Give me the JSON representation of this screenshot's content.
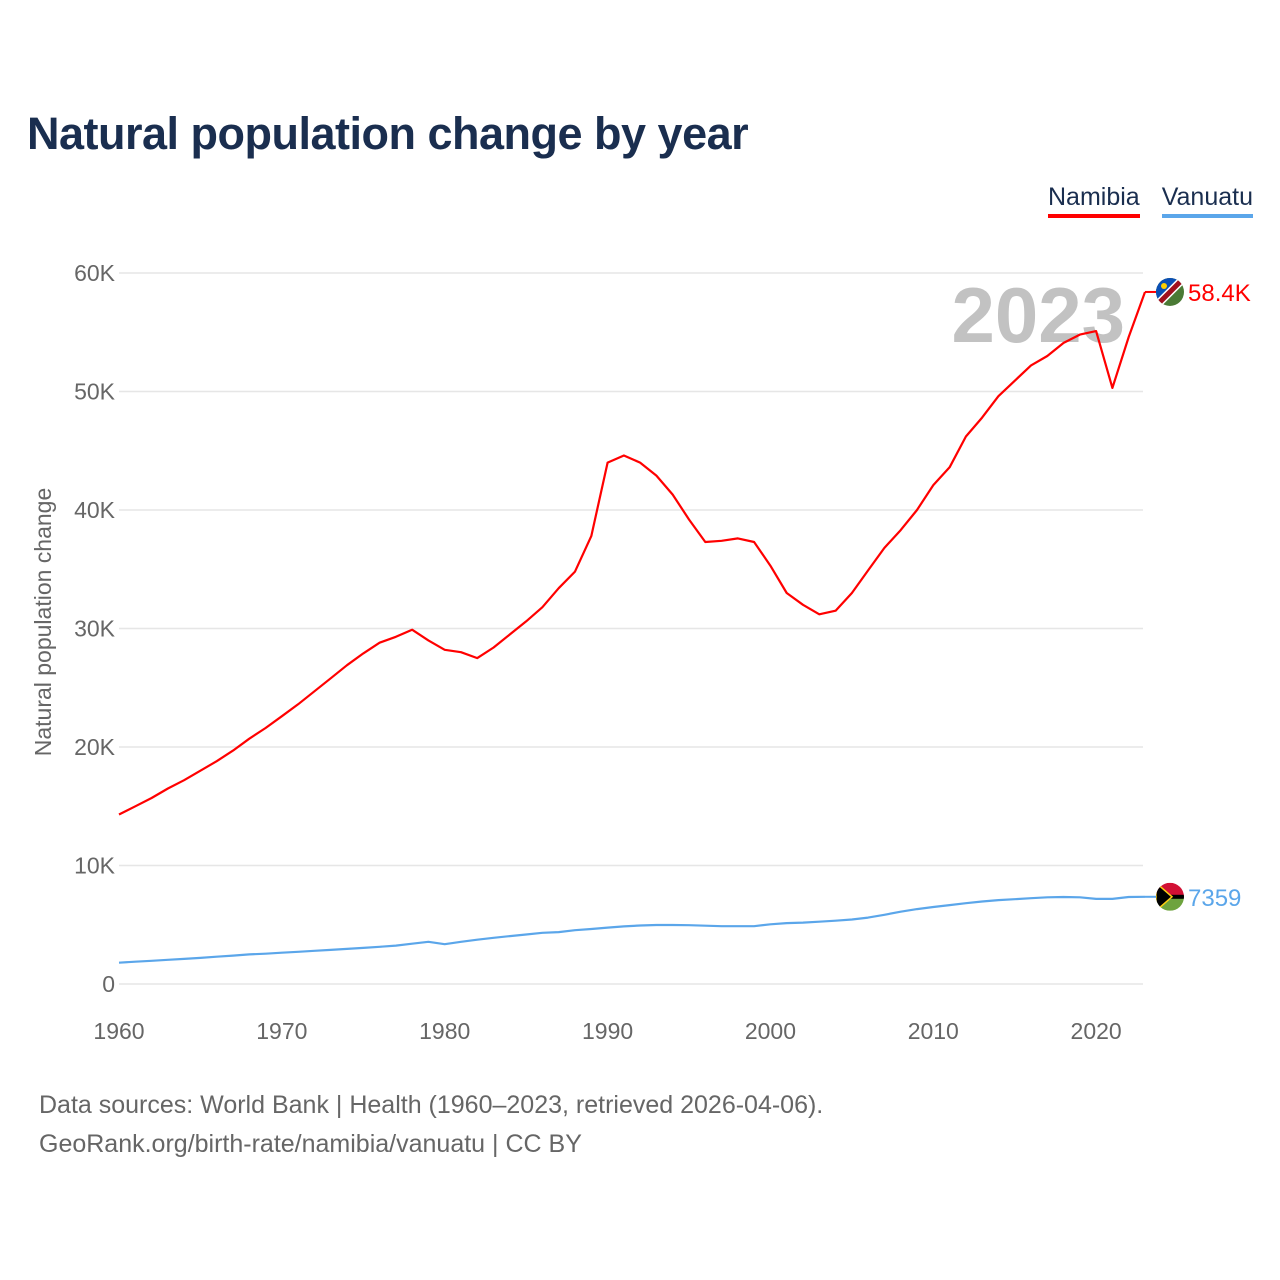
{
  "title": "Natural population change by year",
  "legend": [
    {
      "label": "Namibia",
      "color": "#ff0000"
    },
    {
      "label": "Vanuatu",
      "color": "#5ba6ea"
    }
  ],
  "year_watermark": "2023",
  "source_lines": [
    "Data sources: World Bank | Health (1960–2023, retrieved 2026-04-06).",
    "GeoRank.org/birth-rate/namibia/vanuatu | CC BY"
  ],
  "chart_data": {
    "type": "line",
    "title": "Natural population change by year",
    "xlabel": "",
    "ylabel": "Natural population change",
    "xlim": [
      1960,
      2023
    ],
    "ylim": [
      0,
      60000
    ],
    "grid": true,
    "legend_position": "top-right",
    "x_ticks": [
      1960,
      1970,
      1980,
      1990,
      2000,
      2010,
      2020
    ],
    "x_tick_labels": [
      "1960",
      "1970",
      "1980",
      "1990",
      "2000",
      "2010",
      "2020"
    ],
    "y_ticks": [
      0,
      10000,
      20000,
      30000,
      40000,
      50000,
      60000
    ],
    "y_tick_labels": [
      "0",
      "10K",
      "20K",
      "30K",
      "40K",
      "50K",
      "60K"
    ],
    "x": [
      1960,
      1961,
      1962,
      1963,
      1964,
      1965,
      1966,
      1967,
      1968,
      1969,
      1970,
      1971,
      1972,
      1973,
      1974,
      1975,
      1976,
      1977,
      1978,
      1979,
      1980,
      1981,
      1982,
      1983,
      1984,
      1985,
      1986,
      1987,
      1988,
      1989,
      1990,
      1991,
      1992,
      1993,
      1994,
      1995,
      1996,
      1997,
      1998,
      1999,
      2000,
      2001,
      2002,
      2003,
      2004,
      2005,
      2006,
      2007,
      2008,
      2009,
      2010,
      2011,
      2012,
      2013,
      2014,
      2015,
      2016,
      2017,
      2018,
      2019,
      2020,
      2021,
      2022,
      2023
    ],
    "series": [
      {
        "name": "Namibia",
        "color": "#ff0000",
        "end_label": "58.4K",
        "flag": "namibia-flag",
        "values": [
          14300,
          15000,
          15700,
          16500,
          17200,
          18000,
          18800,
          19700,
          20700,
          21600,
          22600,
          23600,
          24700,
          25800,
          26900,
          27900,
          28800,
          29300,
          29900,
          29000,
          28200,
          28000,
          27500,
          28400,
          29500,
          30600,
          31800,
          33400,
          34800,
          37800,
          44000,
          44600,
          44000,
          42900,
          41300,
          39200,
          37300,
          37400,
          37600,
          37300,
          35300,
          33000,
          32000,
          31200,
          31500,
          33000,
          34900,
          36800,
          38300,
          40000,
          42100,
          43600,
          46200,
          47800,
          49600,
          50900,
          52200,
          53000,
          54100,
          54800,
          55100,
          50300,
          54600,
          58400
        ]
      },
      {
        "name": "Vanuatu",
        "color": "#5ba6ea",
        "end_label": "7359",
        "flag": "vanuatu-flag",
        "values": [
          1800,
          1880,
          1960,
          2040,
          2120,
          2200,
          2300,
          2400,
          2500,
          2560,
          2640,
          2720,
          2800,
          2880,
          2960,
          3050,
          3140,
          3240,
          3400,
          3560,
          3360,
          3560,
          3740,
          3900,
          4040,
          4180,
          4320,
          4380,
          4540,
          4640,
          4760,
          4860,
          4940,
          4980,
          4980,
          4960,
          4920,
          4880,
          4880,
          4880,
          5040,
          5140,
          5180,
          5260,
          5340,
          5440,
          5600,
          5840,
          6100,
          6320,
          6500,
          6660,
          6820,
          6960,
          7080,
          7160,
          7240,
          7320,
          7340,
          7320,
          7180,
          7180,
          7340,
          7359
        ]
      }
    ]
  }
}
